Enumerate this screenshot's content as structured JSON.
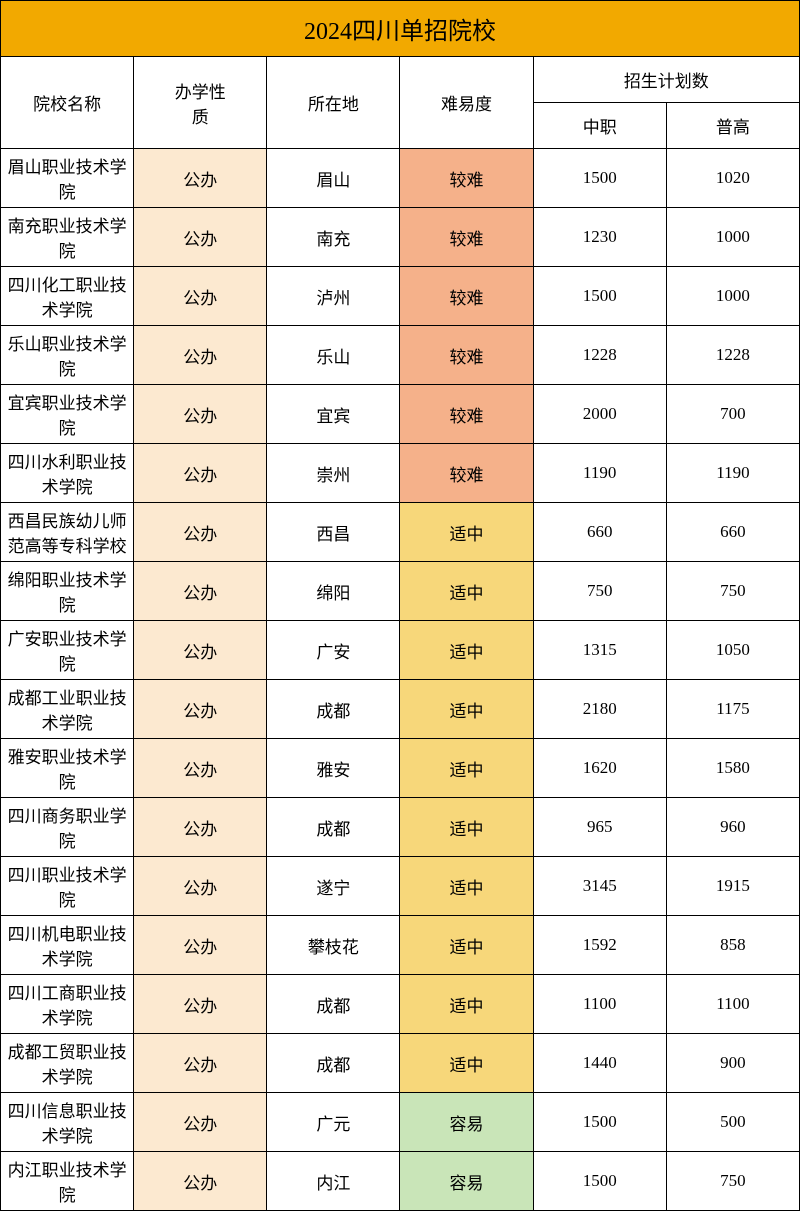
{
  "title": "2024四川单招院校",
  "headers": {
    "name": "院校名称",
    "type": "办学性\n质",
    "location": "所在地",
    "difficulty": "难易度",
    "plan": "招生计划数",
    "zhongzhi": "中职",
    "pugao": "普高"
  },
  "difficulty_colors": {
    "较难": "#f5b18a",
    "适中": "#f7d77a",
    "容易": "#c9e5b8"
  },
  "type_bg": "#fce9d0",
  "title_bg": "#f2a900",
  "rows": [
    {
      "name": "眉山职业技术学院",
      "type": "公办",
      "location": "眉山",
      "difficulty": "较难",
      "zhongzhi": "1500",
      "pugao": "1020"
    },
    {
      "name": "南充职业技术学院",
      "type": "公办",
      "location": "南充",
      "difficulty": "较难",
      "zhongzhi": "1230",
      "pugao": "1000"
    },
    {
      "name": "四川化工职业技术学院",
      "type": "公办",
      "location": "泸州",
      "difficulty": "较难",
      "zhongzhi": "1500",
      "pugao": "1000"
    },
    {
      "name": "乐山职业技术学院",
      "type": "公办",
      "location": "乐山",
      "difficulty": "较难",
      "zhongzhi": "1228",
      "pugao": "1228"
    },
    {
      "name": "宜宾职业技术学院",
      "type": "公办",
      "location": "宜宾",
      "difficulty": "较难",
      "zhongzhi": "2000",
      "pugao": "700"
    },
    {
      "name": "四川水利职业技术学院",
      "type": "公办",
      "location": "崇州",
      "difficulty": "较难",
      "zhongzhi": "1190",
      "pugao": "1190"
    },
    {
      "name": "西昌民族幼儿师范高等专科学校",
      "type": "公办",
      "location": "西昌",
      "difficulty": "适中",
      "zhongzhi": "660",
      "pugao": "660"
    },
    {
      "name": "绵阳职业技术学院",
      "type": "公办",
      "location": "绵阳",
      "difficulty": "适中",
      "zhongzhi": "750",
      "pugao": "750"
    },
    {
      "name": "广安职业技术学院",
      "type": "公办",
      "location": "广安",
      "difficulty": "适中",
      "zhongzhi": "1315",
      "pugao": "1050"
    },
    {
      "name": "成都工业职业技术学院",
      "type": "公办",
      "location": "成都",
      "difficulty": "适中",
      "zhongzhi": "2180",
      "pugao": "1175"
    },
    {
      "name": "雅安职业技术学院",
      "type": "公办",
      "location": "雅安",
      "difficulty": "适中",
      "zhongzhi": "1620",
      "pugao": "1580"
    },
    {
      "name": "四川商务职业学院",
      "type": "公办",
      "location": "成都",
      "difficulty": "适中",
      "zhongzhi": "965",
      "pugao": "960"
    },
    {
      "name": "四川职业技术学院",
      "type": "公办",
      "location": "遂宁",
      "difficulty": "适中",
      "zhongzhi": "3145",
      "pugao": "1915"
    },
    {
      "name": "四川机电职业技术学院",
      "type": "公办",
      "location": "攀枝花",
      "difficulty": "适中",
      "zhongzhi": "1592",
      "pugao": "858"
    },
    {
      "name": "四川工商职业技术学院",
      "type": "公办",
      "location": "成都",
      "difficulty": "适中",
      "zhongzhi": "1100",
      "pugao": "1100"
    },
    {
      "name": "成都工贸职业技术学院",
      "type": "公办",
      "location": "成都",
      "difficulty": "适中",
      "zhongzhi": "1440",
      "pugao": "900"
    },
    {
      "name": "四川信息职业技术学院",
      "type": "公办",
      "location": "广元",
      "difficulty": "容易",
      "zhongzhi": "1500",
      "pugao": "500"
    },
    {
      "name": "内江职业技术学院",
      "type": "公办",
      "location": "内江",
      "difficulty": "容易",
      "zhongzhi": "1500",
      "pugao": "750"
    }
  ]
}
